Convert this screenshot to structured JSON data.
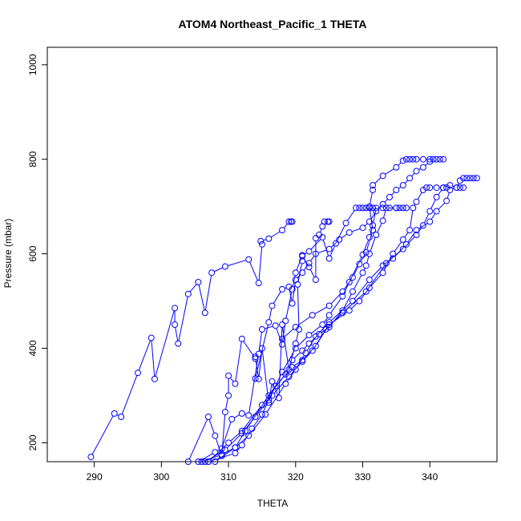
{
  "chart_data": {
    "type": "line",
    "title": "ATOM4 Northeast_Pacific_1 THETA",
    "xlabel": "THETA",
    "ylabel": "Pressure (mbar)",
    "xlim": [
      283,
      350
    ],
    "ylim": [
      1037,
      160
    ],
    "x_ticks": [
      290,
      300,
      310,
      320,
      330,
      340
    ],
    "y_ticks": [
      200,
      400,
      600,
      800,
      1000
    ],
    "y_reversed": true,
    "grid": false,
    "legend": "none",
    "series_color": "#0000ff",
    "marker": "open-circle",
    "series": [
      {
        "points": [
          [
            289.5,
            170
          ],
          [
            293,
            262
          ],
          [
            294,
            255
          ],
          [
            296.5,
            348
          ],
          [
            298.5,
            422
          ],
          [
            299,
            335
          ],
          [
            302,
            485
          ],
          [
            302,
            450
          ],
          [
            302.5,
            410
          ],
          [
            304,
            515
          ],
          [
            305.5,
            540
          ],
          [
            306.5,
            475
          ],
          [
            307.5,
            560
          ],
          [
            309.5,
            573
          ],
          [
            313,
            588
          ],
          [
            314.5,
            538
          ],
          [
            315,
            620
          ],
          [
            314.8,
            627
          ],
          [
            316,
            632
          ],
          [
            318,
            650
          ],
          [
            319,
            668
          ],
          [
            319.3,
            668
          ],
          [
            319.5,
            668
          ]
        ]
      },
      {
        "points": [
          [
            304,
            160
          ],
          [
            307,
            255
          ],
          [
            308,
            215
          ],
          [
            309,
            172
          ],
          [
            309.5,
            265
          ],
          [
            310,
            300
          ],
          [
            310,
            342
          ],
          [
            311,
            325
          ],
          [
            312,
            420
          ],
          [
            314,
            378
          ],
          [
            314,
            382
          ],
          [
            314.5,
            335
          ],
          [
            315,
            400
          ],
          [
            316,
            285
          ],
          [
            316.5,
            330
          ],
          [
            317.5,
            295
          ],
          [
            318,
            450
          ],
          [
            319,
            355
          ],
          [
            320,
            410
          ],
          [
            320.5,
            440
          ],
          [
            320.3,
            535
          ],
          [
            321,
            585
          ],
          [
            321,
            595
          ],
          [
            322,
            572
          ],
          [
            323,
            545
          ],
          [
            323,
            633
          ],
          [
            323.5,
            640
          ],
          [
            324,
            658
          ],
          [
            324.3,
            668
          ],
          [
            324.8,
            668
          ],
          [
            325,
            668
          ]
        ]
      },
      {
        "points": [
          [
            305.5,
            160
          ],
          [
            308,
            180
          ],
          [
            309,
            188
          ],
          [
            310.5,
            250
          ],
          [
            312,
            262
          ],
          [
            313,
            258
          ],
          [
            314.5,
            388
          ],
          [
            315,
            440
          ],
          [
            317,
            448
          ],
          [
            318,
            408
          ],
          [
            318.5,
            458
          ],
          [
            319.5,
            525
          ],
          [
            320,
            560
          ],
          [
            321,
            597
          ],
          [
            322,
            605
          ],
          [
            324,
            635
          ],
          [
            325,
            590
          ],
          [
            326,
            622
          ],
          [
            327.5,
            665
          ],
          [
            329,
            697
          ],
          [
            329.5,
            697
          ],
          [
            330,
            697
          ],
          [
            330.5,
            697
          ],
          [
            331,
            697
          ],
          [
            331.5,
            697
          ]
        ]
      },
      {
        "points": [
          [
            307,
            160
          ],
          [
            311,
            178
          ],
          [
            312,
            195
          ],
          [
            313.5,
            230
          ],
          [
            315,
            260
          ],
          [
            316,
            290
          ],
          [
            318,
            350
          ],
          [
            320,
            400
          ],
          [
            322,
            428
          ],
          [
            324,
            450
          ],
          [
            325,
            470
          ],
          [
            327,
            510
          ],
          [
            328,
            540
          ],
          [
            330,
            598
          ],
          [
            331,
            635
          ],
          [
            331.5,
            660
          ],
          [
            332,
            697
          ],
          [
            333,
            697
          ],
          [
            334,
            697
          ],
          [
            335,
            697
          ],
          [
            335.5,
            697
          ]
        ]
      },
      {
        "points": [
          [
            306,
            160
          ],
          [
            309,
            175
          ],
          [
            311,
            190
          ],
          [
            312.5,
            225
          ],
          [
            316,
            300
          ],
          [
            318.5,
            345
          ],
          [
            319.5,
            375
          ],
          [
            321,
            395
          ],
          [
            322,
            410
          ],
          [
            323.5,
            430
          ],
          [
            325,
            445
          ],
          [
            327,
            480
          ],
          [
            328.5,
            520
          ],
          [
            330,
            560
          ],
          [
            330.5,
            575
          ],
          [
            331,
            600
          ],
          [
            332,
            640
          ],
          [
            333,
            670
          ],
          [
            333.5,
            697
          ],
          [
            335,
            697
          ],
          [
            336,
            697
          ],
          [
            336.5,
            697
          ]
        ]
      },
      {
        "points": [
          [
            307,
            160
          ],
          [
            310,
            200
          ],
          [
            312,
            225
          ],
          [
            315,
            280
          ],
          [
            317,
            320
          ],
          [
            319.5,
            360
          ],
          [
            321,
            375
          ],
          [
            323,
            405
          ],
          [
            325,
            450
          ],
          [
            328,
            480
          ],
          [
            329.5,
            500
          ],
          [
            331,
            528
          ],
          [
            333,
            560
          ],
          [
            334.5,
            600
          ],
          [
            336,
            630
          ],
          [
            337,
            650
          ],
          [
            337.5,
            697
          ],
          [
            338,
            710
          ],
          [
            339,
            735
          ],
          [
            339.5,
            740
          ],
          [
            340,
            740
          ],
          [
            341,
            740
          ],
          [
            342,
            740
          ],
          [
            342.5,
            740
          ]
        ]
      },
      {
        "points": [
          [
            308,
            160
          ],
          [
            311,
            190
          ],
          [
            313,
            215
          ],
          [
            315.5,
            260
          ],
          [
            318.5,
            325
          ],
          [
            320,
            355
          ],
          [
            321.5,
            390
          ],
          [
            323,
            425
          ],
          [
            325,
            455
          ],
          [
            328.5,
            500
          ],
          [
            331,
            545
          ],
          [
            333,
            575
          ],
          [
            336,
            610
          ],
          [
            338,
            640
          ],
          [
            339,
            660
          ],
          [
            340,
            690
          ],
          [
            341,
            720
          ],
          [
            342,
            740
          ],
          [
            343,
            745
          ],
          [
            344,
            740
          ],
          [
            344.5,
            740
          ],
          [
            345,
            740
          ]
        ]
      },
      {
        "points": [
          [
            306.5,
            160
          ],
          [
            309.5,
            185
          ],
          [
            312,
            220
          ],
          [
            314,
            255
          ],
          [
            316.5,
            300
          ],
          [
            319,
            340
          ],
          [
            321,
            372
          ],
          [
            322.5,
            395
          ],
          [
            324.5,
            440
          ],
          [
            327,
            475
          ],
          [
            330.5,
            520
          ],
          [
            333.5,
            580
          ],
          [
            334.5,
            590
          ],
          [
            336.5,
            620
          ],
          [
            338,
            650
          ],
          [
            340,
            668
          ],
          [
            341,
            690
          ],
          [
            342.5,
            712
          ],
          [
            343,
            735
          ],
          [
            344,
            740
          ],
          [
            344.5,
            755
          ],
          [
            345,
            760
          ],
          [
            345.5,
            760
          ],
          [
            346,
            760
          ],
          [
            346.5,
            760
          ],
          [
            347,
            760
          ]
        ]
      },
      {
        "points": [
          [
            314,
            336
          ],
          [
            316,
            455
          ],
          [
            316.5,
            490
          ],
          [
            318,
            525
          ],
          [
            319,
            530
          ],
          [
            319.5,
            495
          ],
          [
            320,
            545
          ],
          [
            321,
            560
          ],
          [
            322,
            580
          ],
          [
            323,
            600
          ],
          [
            325,
            610
          ],
          [
            326.5,
            630
          ],
          [
            328,
            645
          ],
          [
            330,
            655
          ],
          [
            331,
            668
          ],
          [
            332,
            690
          ],
          [
            333,
            705
          ],
          [
            334,
            720
          ],
          [
            335,
            735
          ],
          [
            336,
            745
          ],
          [
            337,
            760
          ],
          [
            338,
            775
          ],
          [
            339,
            783
          ],
          [
            340,
            795
          ],
          [
            340.5,
            800
          ],
          [
            341,
            800
          ],
          [
            341.5,
            800
          ],
          [
            342,
            800
          ]
        ]
      },
      {
        "points": [
          [
            318,
            420
          ],
          [
            320,
            445
          ],
          [
            322.5,
            470
          ],
          [
            325,
            490
          ],
          [
            327,
            520
          ],
          [
            328.5,
            550
          ],
          [
            329.5,
            578
          ],
          [
            330.5,
            603
          ],
          [
            331.5,
            650
          ],
          [
            331,
            700
          ],
          [
            331.5,
            735
          ],
          [
            331.5,
            745
          ],
          [
            333,
            765
          ],
          [
            335,
            783
          ],
          [
            336,
            797
          ],
          [
            336.5,
            800
          ],
          [
            337,
            800
          ],
          [
            337.5,
            800
          ],
          [
            338,
            800
          ],
          [
            339,
            800
          ],
          [
            340,
            800
          ]
        ]
      }
    ]
  }
}
